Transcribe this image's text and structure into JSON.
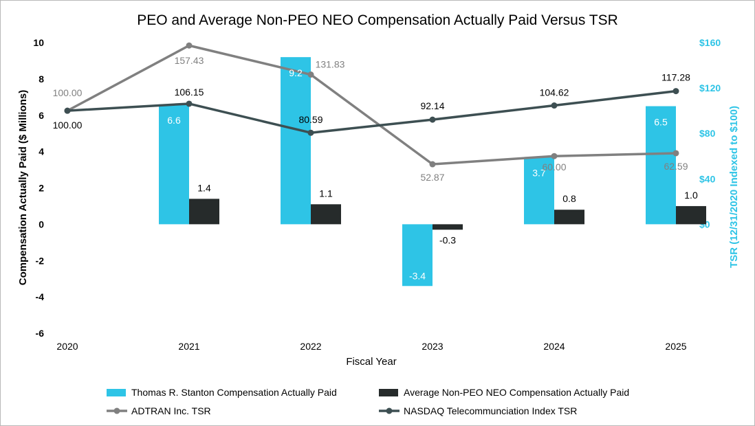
{
  "chart_data": {
    "type": "bar",
    "title": "PEO and Average Non-PEO NEO Compensation Actually Paid Versus TSR",
    "xlabel": "Fiscal Year",
    "ylabel": "Compensation Actually Paid ($ Millions)",
    "y2label": "TSR (12/31/2020 Indexed to $100)",
    "categories": [
      "2020",
      "2021",
      "2022",
      "2023",
      "2024",
      "2025"
    ],
    "ylim": [
      -6,
      10
    ],
    "yticks": [
      "10",
      "8",
      "6",
      "4",
      "2",
      "0",
      "-2",
      "-4",
      "-6"
    ],
    "ytick_values": [
      10,
      8,
      6,
      4,
      2,
      0,
      -2,
      -4,
      -6
    ],
    "y2lim": [
      0,
      160
    ],
    "y2ticks": [
      "$160",
      "$120",
      "$80",
      "$40",
      "$0"
    ],
    "y2tick_values": [
      160,
      120,
      80,
      40,
      0
    ],
    "grid": false,
    "legend_position": "bottom",
    "colors": {
      "peo_bar": "#2ec4e6",
      "neo_bar": "#262b2b",
      "adtran_line": "#808080",
      "nasdaq_line": "#3d4f52",
      "y2_axis": "#2ec4e6"
    },
    "bar_series": [
      {
        "name": "Thomas R. Stanton Compensation Actually Paid",
        "values": [
          null,
          6.6,
          9.2,
          -3.4,
          3.7,
          6.5
        ],
        "labels": [
          "",
          "6.6",
          "9.2",
          "-3.4",
          "3.7",
          "6.5"
        ]
      },
      {
        "name": "Average Non-PEO NEO Compensation Actually Paid",
        "values": [
          null,
          1.4,
          1.1,
          -0.3,
          0.8,
          1.0
        ],
        "labels": [
          "",
          "1.4",
          "1.1",
          "-0.3",
          "0.8",
          "1.0"
        ]
      }
    ],
    "line_series": [
      {
        "name": "ADTRAN Inc. TSR",
        "values": [
          100.0,
          157.43,
          131.83,
          52.87,
          60.0,
          62.59
        ],
        "labels": [
          "100.00",
          "157.43",
          "131.83",
          "52.87",
          "60.00",
          "62.59"
        ]
      },
      {
        "name": "NASDAQ Telecommunciation Index TSR",
        "values": [
          100.0,
          106.15,
          80.59,
          92.14,
          104.62,
          117.28
        ],
        "labels": [
          "100.00",
          "106.15",
          "80.59",
          "92.14",
          "104.62",
          "117.28"
        ]
      }
    ]
  }
}
